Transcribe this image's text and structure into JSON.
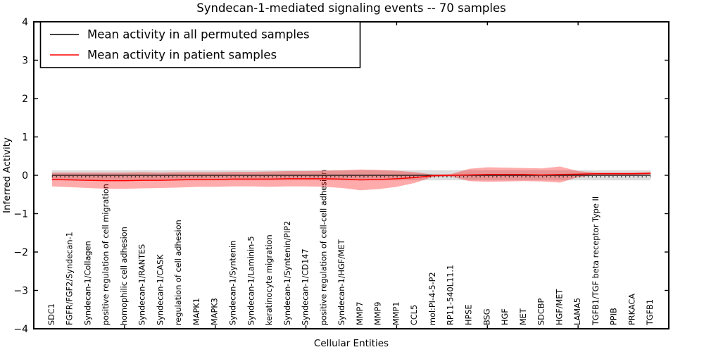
{
  "title": "Syndecan-1-mediated signaling events -- 70 samples",
  "axes": {
    "xlabel": "Cellular Entities",
    "ylabel": "Inferred Activity"
  },
  "legend": {
    "items": [
      {
        "label": "Mean activity in all permuted samples",
        "color": "#000000"
      },
      {
        "label": "Mean activity in patient samples",
        "color": "#ff0000"
      }
    ]
  },
  "chart_data": {
    "type": "line",
    "title": "Syndecan-1-mediated signaling events -- 70 samples",
    "xlabel": "Cellular Entities",
    "ylabel": "Inferred Activity",
    "ylim": [
      -4,
      4
    ],
    "yticks": [
      4,
      3,
      2,
      1,
      0,
      -1,
      -2,
      -3,
      -4
    ],
    "x_major_tick_interval": 5,
    "grid": false,
    "legend_position": "upper left",
    "zero_reference_line": {
      "value": -0.04,
      "style": "dotted",
      "color": "#000000"
    },
    "band_colors": {
      "permuted": "#bbbbbb",
      "patient": "#ff0000"
    },
    "categories": [
      "SDC1",
      "FGFR/FGF2/Syndecan-1",
      "Syndecan-1/Collagen",
      "positive regulation of cell migration",
      "homophilic cell adhesion",
      "Syndecan-1/RANTES",
      "Syndecan-1/CASK",
      "regulation of cell adhesion",
      "MAPK1",
      "MAPK3",
      "Syndecan-1/Syntenin",
      "Syndecan-1/Laminin-5",
      "keratinocyte migration",
      "Syndecan-1/Syntenin/PIP2",
      "Syndecan-1/CD147",
      "positive regulation of cell-cell adhesion",
      "Syndecan-1/HGF/MET",
      "MMP7",
      "MMP9",
      "MMP1",
      "CCL5",
      "mol:PI-4-5-P2",
      "RP11-540L11.1",
      "HPSE",
      "BSG",
      "HGF",
      "MET",
      "SDCBP",
      "HGF/MET",
      "LAMA5",
      "TGFB1/TGF beta receptor Type II",
      "PPIB",
      "PRKACA",
      "TGFB1"
    ],
    "series": [
      {
        "name": "Mean activity in all permuted samples",
        "color": "#000000",
        "mean": 0.0,
        "std": 0.13
      },
      {
        "name": "Mean activity in patient samples",
        "color": "#ff0000",
        "mean": [
          -0.11,
          -0.12,
          -0.13,
          -0.14,
          -0.14,
          -0.13,
          -0.13,
          -0.12,
          -0.11,
          -0.11,
          -0.1,
          -0.1,
          -0.1,
          -0.09,
          -0.09,
          -0.09,
          -0.1,
          -0.12,
          -0.11,
          -0.09,
          -0.06,
          -0.01,
          0.0,
          0.01,
          0.02,
          0.02,
          0.02,
          0.01,
          0.02,
          0.03,
          0.04,
          0.04,
          0.04,
          0.05
        ],
        "std": [
          0.18,
          0.19,
          0.2,
          0.21,
          0.21,
          0.21,
          0.2,
          0.2,
          0.19,
          0.19,
          0.19,
          0.19,
          0.2,
          0.2,
          0.2,
          0.21,
          0.23,
          0.27,
          0.25,
          0.21,
          0.14,
          0.03,
          0.03,
          0.16,
          0.19,
          0.18,
          0.17,
          0.17,
          0.21,
          0.08,
          0.03,
          0.03,
          0.03,
          0.03
        ]
      }
    ]
  }
}
